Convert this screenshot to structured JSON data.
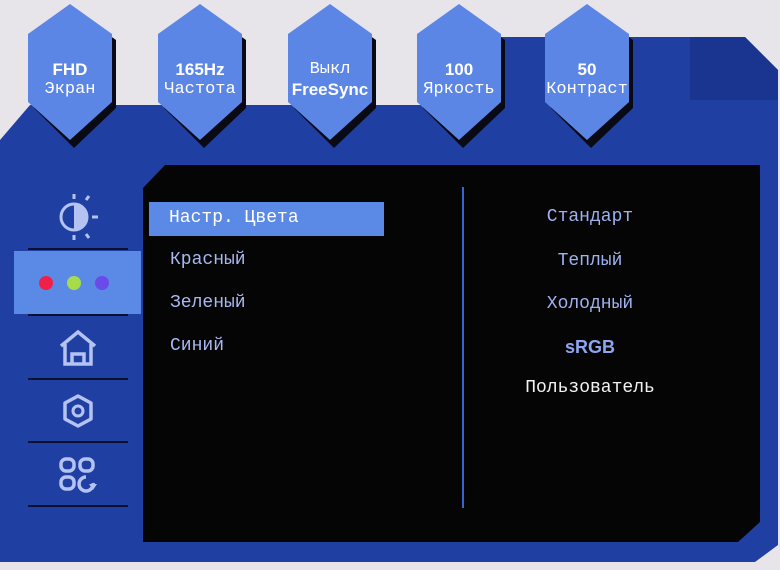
{
  "status_tiles": [
    {
      "value": "FHD",
      "label": "Экран"
    },
    {
      "value": "165Hz",
      "label": "Частота"
    },
    {
      "value": "Выкл",
      "label": "FreeSync"
    },
    {
      "value": "100",
      "label": "Яркость"
    },
    {
      "value": "50",
      "label": "Контраст"
    }
  ],
  "sidebar": {
    "items": [
      {
        "icon": "brightness-contrast-icon",
        "selected": false
      },
      {
        "icon": "color-dots-icon",
        "selected": true
      },
      {
        "icon": "home-icon",
        "selected": false
      },
      {
        "icon": "gear-icon",
        "selected": false
      },
      {
        "icon": "apps-reset-icon",
        "selected": false
      }
    ]
  },
  "menu": {
    "items": [
      "Настр. Цвета",
      "Красный",
      "Зеленый",
      "Синий"
    ],
    "selected": "Настр. Цвета"
  },
  "options": {
    "items": [
      "Стандарт",
      "Теплый",
      "Холодный",
      "sRGB",
      "Пользователь"
    ],
    "current": "sRGB",
    "highlighted": "Пользователь"
  },
  "colors": {
    "frame_blue": "#1f3fa3",
    "tile_blue": "#5b86e6",
    "highlight": "#5b8ae6",
    "dot_red": "#f0204a",
    "dot_green": "#a6dc4a",
    "dot_purple": "#6a4ae8"
  }
}
